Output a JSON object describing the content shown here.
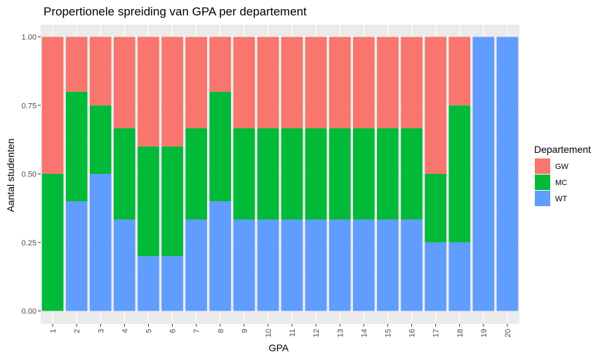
{
  "chart_data": {
    "type": "bar",
    "stacked": "proportional",
    "title": "Propertionele spreiding van GPA per departement",
    "xlabel": "GPA",
    "ylabel": "Aantal studenten",
    "categories": [
      "1",
      "2",
      "3",
      "4",
      "5",
      "6",
      "7",
      "8",
      "9",
      "10",
      "11",
      "12",
      "13",
      "14",
      "15",
      "16",
      "17",
      "18",
      "19",
      "20"
    ],
    "ylim": [
      0,
      1
    ],
    "yticks": [
      "0.00",
      "0.25",
      "0.50",
      "0.75",
      "1.00"
    ],
    "grid": true,
    "legend": {
      "title": "Departement",
      "position": "right"
    },
    "series": [
      {
        "name": "GW",
        "color": "#F8766D",
        "values": [
          0.5,
          0.2,
          0.25,
          0.3333,
          0.4,
          0.4,
          0.3333,
          0.2,
          0.3333,
          0.3333,
          0.3333,
          0.3333,
          0.3333,
          0.3333,
          0.3333,
          0.3333,
          0.5,
          0.25,
          0,
          0
        ]
      },
      {
        "name": "MC",
        "color": "#00BA38",
        "values": [
          0.5,
          0.4,
          0.25,
          0.3333,
          0.4,
          0.4,
          0.3333,
          0.4,
          0.3333,
          0.3333,
          0.3333,
          0.3333,
          0.3333,
          0.3333,
          0.3333,
          0.3333,
          0.25,
          0.5,
          0,
          0
        ]
      },
      {
        "name": "WT",
        "color": "#619CFF",
        "values": [
          0,
          0.4,
          0.5,
          0.3333,
          0.2,
          0.2,
          0.3333,
          0.4,
          0.3333,
          0.3333,
          0.3333,
          0.3333,
          0.3333,
          0.3333,
          0.3333,
          0.3333,
          0.25,
          0.25,
          1,
          1
        ]
      }
    ]
  }
}
